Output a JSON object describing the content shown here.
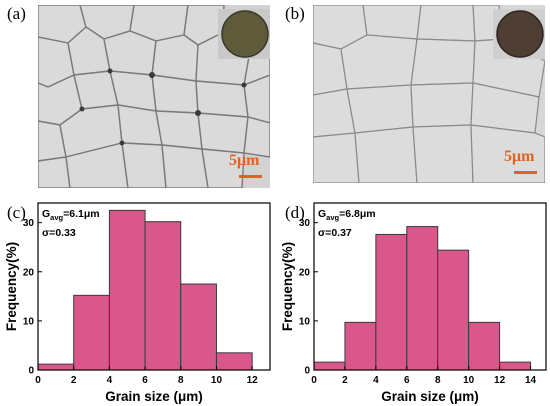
{
  "panels": {
    "a": {
      "label": "(a)",
      "scale_label": "5μm"
    },
    "b": {
      "label": "(b)",
      "scale_label": "5μm"
    },
    "c": {
      "label": "(c)"
    },
    "d": {
      "label": "(d)"
    }
  },
  "colors": {
    "bar_fill": "#d9578a",
    "bar_stroke": "#3a3a3a",
    "scale_bar": "#e2631f",
    "sem_a_bg": "#d2d2d2",
    "sem_b_bg": "#d6d6d6",
    "inset_a": "#5e5a3a",
    "inset_b": "#4e3e34"
  },
  "chart_data": [
    {
      "id": "c",
      "type": "bar",
      "bin_edges": [
        0,
        2,
        4,
        6,
        8,
        10,
        12
      ],
      "values": [
        1.2,
        15.2,
        32.5,
        30.2,
        17.5,
        3.5
      ],
      "xticks": [
        "0",
        "2",
        "4",
        "6",
        "8",
        "10",
        "12"
      ],
      "xlim": [
        0,
        13
      ],
      "ylim": [
        0,
        34
      ],
      "yticks": [
        "0",
        "10",
        "20",
        "30"
      ],
      "xlabel": "Grain size (μm)",
      "ylabel": "Frequency(%)",
      "annotation": {
        "g_prefix": "G",
        "g_sub": "avg",
        "g_value": "=6.1μm",
        "sigma": "σ=0.33"
      }
    },
    {
      "id": "d",
      "type": "bar",
      "bin_edges": [
        0,
        2,
        4,
        6,
        8,
        10,
        12,
        14
      ],
      "values": [
        1.6,
        9.7,
        27.6,
        29.2,
        24.4,
        9.7,
        1.6
      ],
      "xticks": [
        "0",
        "2",
        "4",
        "6",
        "8",
        "10",
        "12",
        "14"
      ],
      "xlim": [
        0,
        15
      ],
      "ylim": [
        0,
        34
      ],
      "yticks": [
        "0",
        "10",
        "20",
        "30"
      ],
      "xlabel": "Grain size (μm)",
      "ylabel": "Frequency(%)",
      "annotation": {
        "g_prefix": "G",
        "g_sub": "avg",
        "g_value": "=6.8μm",
        "sigma": "σ=0.37"
      }
    }
  ]
}
